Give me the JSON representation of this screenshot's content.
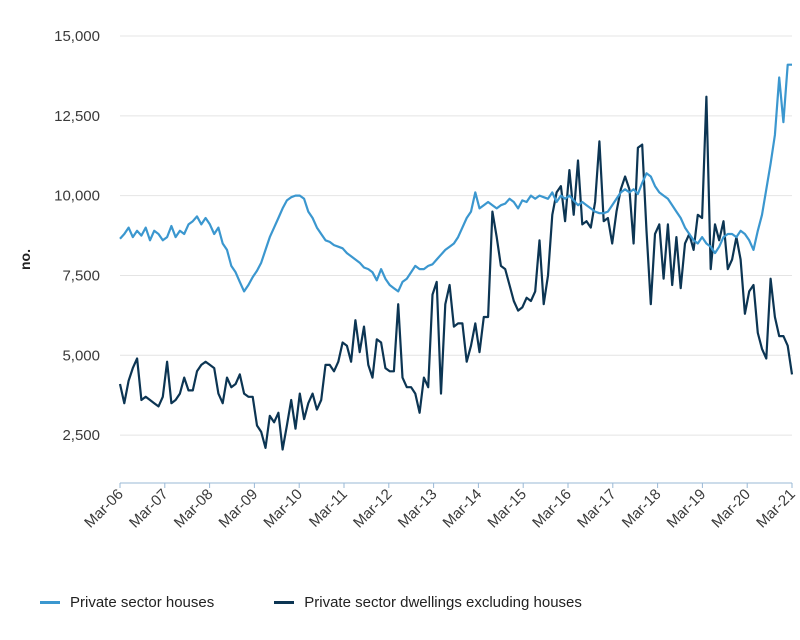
{
  "chart_data": {
    "type": "line",
    "ylabel": "no.",
    "xlabel": "",
    "ylim": [
      1000,
      15000
    ],
    "yticks": [
      2500,
      5000,
      7500,
      10000,
      12500,
      15000
    ],
    "ytick_labels": [
      "2,500",
      "5,000",
      "7,500",
      "10,000",
      "12,500",
      "15,000"
    ],
    "xticks": [
      "Mar-06",
      "Mar-07",
      "Mar-08",
      "Mar-09",
      "Mar-10",
      "Mar-11",
      "Mar-12",
      "Mar-13",
      "Mar-14",
      "Mar-15",
      "Mar-16",
      "Mar-17",
      "Mar-18",
      "Mar-19",
      "Mar-20",
      "Mar-21"
    ],
    "grid": true,
    "legend_position": "bottom",
    "series": [
      {
        "name": "Private sector houses",
        "color": "#3b97cf",
        "points": [
          [
            0,
            8650
          ],
          [
            1,
            8800
          ],
          [
            2,
            9000
          ],
          [
            3,
            8700
          ],
          [
            4,
            8900
          ],
          [
            5,
            8750
          ],
          [
            6,
            9000
          ],
          [
            7,
            8600
          ],
          [
            8,
            8900
          ],
          [
            9,
            8800
          ],
          [
            10,
            8600
          ],
          [
            11,
            8700
          ],
          [
            12,
            9050
          ],
          [
            13,
            8700
          ],
          [
            14,
            8900
          ],
          [
            15,
            8800
          ],
          [
            16,
            9100
          ],
          [
            17,
            9200
          ],
          [
            18,
            9350
          ],
          [
            19,
            9100
          ],
          [
            20,
            9300
          ],
          [
            21,
            9100
          ],
          [
            22,
            8800
          ],
          [
            23,
            9000
          ],
          [
            24,
            8500
          ],
          [
            25,
            8300
          ],
          [
            26,
            7800
          ],
          [
            27,
            7600
          ],
          [
            28,
            7300
          ],
          [
            29,
            7000
          ],
          [
            30,
            7200
          ],
          [
            31,
            7450
          ],
          [
            32,
            7650
          ],
          [
            33,
            7900
          ],
          [
            34,
            8300
          ],
          [
            35,
            8700
          ],
          [
            36,
            9000
          ],
          [
            37,
            9300
          ],
          [
            38,
            9600
          ],
          [
            39,
            9850
          ],
          [
            40,
            9950
          ],
          [
            41,
            10000
          ],
          [
            42,
            10000
          ],
          [
            43,
            9900
          ],
          [
            44,
            9500
          ],
          [
            45,
            9300
          ],
          [
            46,
            9000
          ],
          [
            47,
            8800
          ],
          [
            48,
            8600
          ],
          [
            49,
            8550
          ],
          [
            50,
            8450
          ],
          [
            51,
            8400
          ],
          [
            52,
            8350
          ],
          [
            53,
            8200
          ],
          [
            54,
            8100
          ],
          [
            55,
            8000
          ],
          [
            56,
            7900
          ],
          [
            57,
            7750
          ],
          [
            58,
            7700
          ],
          [
            59,
            7600
          ],
          [
            60,
            7350
          ],
          [
            61,
            7700
          ],
          [
            62,
            7400
          ],
          [
            63,
            7200
          ],
          [
            64,
            7100
          ],
          [
            65,
            7000
          ],
          [
            66,
            7300
          ],
          [
            67,
            7400
          ],
          [
            68,
            7600
          ],
          [
            69,
            7800
          ],
          [
            70,
            7700
          ],
          [
            71,
            7700
          ],
          [
            72,
            7800
          ],
          [
            73,
            7850
          ],
          [
            74,
            8000
          ],
          [
            75,
            8150
          ],
          [
            76,
            8300
          ],
          [
            77,
            8400
          ],
          [
            78,
            8500
          ],
          [
            79,
            8700
          ],
          [
            80,
            9000
          ],
          [
            81,
            9300
          ],
          [
            82,
            9500
          ],
          [
            83,
            10100
          ],
          [
            84,
            9600
          ],
          [
            85,
            9700
          ],
          [
            86,
            9800
          ],
          [
            87,
            9700
          ],
          [
            88,
            9600
          ],
          [
            89,
            9700
          ],
          [
            90,
            9750
          ],
          [
            91,
            9900
          ],
          [
            92,
            9800
          ],
          [
            93,
            9600
          ],
          [
            94,
            9850
          ],
          [
            95,
            9800
          ],
          [
            96,
            10000
          ],
          [
            97,
            9900
          ],
          [
            98,
            10000
          ],
          [
            99,
            9950
          ],
          [
            100,
            9900
          ],
          [
            101,
            10100
          ],
          [
            102,
            9800
          ],
          [
            103,
            10000
          ],
          [
            104,
            9900
          ],
          [
            105,
            10000
          ],
          [
            106,
            9850
          ],
          [
            107,
            9700
          ],
          [
            108,
            9800
          ],
          [
            109,
            9700
          ],
          [
            110,
            9600
          ],
          [
            111,
            9500
          ],
          [
            112,
            9450
          ],
          [
            113,
            9450
          ],
          [
            114,
            9500
          ],
          [
            115,
            9700
          ],
          [
            116,
            9900
          ],
          [
            117,
            10100
          ],
          [
            118,
            10200
          ],
          [
            119,
            10100
          ],
          [
            120,
            10200
          ],
          [
            121,
            10050
          ],
          [
            122,
            10400
          ],
          [
            123,
            10700
          ],
          [
            124,
            10600
          ],
          [
            125,
            10300
          ],
          [
            126,
            10100
          ],
          [
            127,
            10000
          ],
          [
            128,
            9900
          ],
          [
            129,
            9700
          ],
          [
            130,
            9500
          ],
          [
            131,
            9300
          ],
          [
            132,
            9000
          ],
          [
            133,
            8800
          ],
          [
            134,
            8600
          ],
          [
            135,
            8500
          ],
          [
            136,
            8700
          ],
          [
            137,
            8500
          ],
          [
            138,
            8400
          ],
          [
            139,
            8200
          ],
          [
            140,
            8400
          ],
          [
            141,
            8700
          ],
          [
            142,
            8800
          ],
          [
            143,
            8800
          ],
          [
            144,
            8700
          ],
          [
            145,
            8900
          ],
          [
            146,
            8800
          ],
          [
            147,
            8600
          ],
          [
            148,
            8300
          ],
          [
            149,
            8900
          ],
          [
            150,
            9400
          ],
          [
            151,
            10200
          ],
          [
            152,
            11000
          ],
          [
            153,
            11900
          ],
          [
            154,
            13700
          ],
          [
            155,
            12300
          ],
          [
            156,
            14100
          ],
          [
            157,
            14100
          ]
        ]
      },
      {
        "name": "Private sector dwellings excluding houses",
        "color": "#0c3553",
        "points": [
          [
            0,
            4100
          ],
          [
            1,
            3500
          ],
          [
            2,
            4200
          ],
          [
            3,
            4600
          ],
          [
            4,
            4900
          ],
          [
            5,
            3600
          ],
          [
            6,
            3700
          ],
          [
            7,
            3600
          ],
          [
            8,
            3500
          ],
          [
            9,
            3400
          ],
          [
            10,
            3700
          ],
          [
            11,
            4800
          ],
          [
            12,
            3500
          ],
          [
            13,
            3600
          ],
          [
            14,
            3800
          ],
          [
            15,
            4300
          ],
          [
            16,
            3900
          ],
          [
            17,
            3900
          ],
          [
            18,
            4500
          ],
          [
            19,
            4700
          ],
          [
            20,
            4800
          ],
          [
            21,
            4700
          ],
          [
            22,
            4600
          ],
          [
            23,
            3800
          ],
          [
            24,
            3500
          ],
          [
            25,
            4300
          ],
          [
            26,
            4000
          ],
          [
            27,
            4100
          ],
          [
            28,
            4400
          ],
          [
            29,
            3800
          ],
          [
            30,
            3700
          ],
          [
            31,
            3700
          ],
          [
            32,
            2800
          ],
          [
            33,
            2600
          ],
          [
            34,
            2100
          ],
          [
            35,
            3100
          ],
          [
            36,
            2900
          ],
          [
            37,
            3200
          ],
          [
            38,
            2050
          ],
          [
            39,
            2800
          ],
          [
            40,
            3600
          ],
          [
            41,
            2700
          ],
          [
            42,
            3800
          ],
          [
            43,
            3000
          ],
          [
            44,
            3500
          ],
          [
            45,
            3800
          ],
          [
            46,
            3300
          ],
          [
            47,
            3600
          ],
          [
            48,
            4700
          ],
          [
            49,
            4700
          ],
          [
            50,
            4500
          ],
          [
            51,
            4800
          ],
          [
            52,
            5400
          ],
          [
            53,
            5300
          ],
          [
            54,
            4800
          ],
          [
            55,
            6100
          ],
          [
            56,
            5100
          ],
          [
            57,
            5900
          ],
          [
            58,
            4700
          ],
          [
            59,
            4300
          ],
          [
            60,
            5500
          ],
          [
            61,
            5400
          ],
          [
            62,
            4600
          ],
          [
            63,
            4500
          ],
          [
            64,
            4500
          ],
          [
            65,
            6600
          ],
          [
            66,
            4300
          ],
          [
            67,
            4000
          ],
          [
            68,
            4000
          ],
          [
            69,
            3800
          ],
          [
            70,
            3200
          ],
          [
            71,
            4300
          ],
          [
            72,
            4000
          ],
          [
            73,
            6900
          ],
          [
            74,
            7300
          ],
          [
            75,
            3800
          ],
          [
            76,
            6600
          ],
          [
            77,
            7200
          ],
          [
            78,
            5900
          ],
          [
            79,
            6000
          ],
          [
            80,
            6000
          ],
          [
            81,
            4800
          ],
          [
            82,
            5300
          ],
          [
            83,
            6000
          ],
          [
            84,
            5100
          ],
          [
            85,
            6200
          ],
          [
            86,
            6200
          ],
          [
            87,
            9500
          ],
          [
            88,
            8700
          ],
          [
            89,
            7800
          ],
          [
            90,
            7700
          ],
          [
            91,
            7200
          ],
          [
            92,
            6700
          ],
          [
            93,
            6400
          ],
          [
            94,
            6500
          ],
          [
            95,
            6800
          ],
          [
            96,
            6700
          ],
          [
            97,
            7000
          ],
          [
            98,
            8600
          ],
          [
            99,
            6600
          ],
          [
            100,
            7500
          ],
          [
            101,
            9400
          ],
          [
            102,
            10100
          ],
          [
            103,
            10300
          ],
          [
            104,
            9200
          ],
          [
            105,
            10800
          ],
          [
            106,
            9400
          ],
          [
            107,
            11100
          ],
          [
            108,
            9100
          ],
          [
            109,
            9200
          ],
          [
            110,
            9000
          ],
          [
            111,
            9800
          ],
          [
            112,
            11700
          ],
          [
            113,
            9200
          ],
          [
            114,
            9300
          ],
          [
            115,
            8500
          ],
          [
            116,
            9500
          ],
          [
            117,
            10200
          ],
          [
            118,
            10600
          ],
          [
            119,
            10200
          ],
          [
            120,
            8500
          ],
          [
            121,
            11500
          ],
          [
            122,
            11600
          ],
          [
            123,
            8900
          ],
          [
            124,
            6600
          ],
          [
            125,
            8800
          ],
          [
            126,
            9100
          ],
          [
            127,
            7400
          ],
          [
            128,
            9100
          ],
          [
            129,
            7200
          ],
          [
            130,
            8700
          ],
          [
            131,
            7100
          ],
          [
            132,
            8500
          ],
          [
            133,
            8800
          ],
          [
            134,
            8300
          ],
          [
            135,
            9400
          ],
          [
            136,
            9300
          ],
          [
            137,
            13100
          ],
          [
            138,
            7700
          ],
          [
            139,
            9100
          ],
          [
            140,
            8600
          ],
          [
            141,
            9200
          ],
          [
            142,
            7700
          ],
          [
            143,
            8000
          ],
          [
            144,
            8700
          ],
          [
            145,
            8000
          ],
          [
            146,
            6300
          ],
          [
            147,
            7000
          ],
          [
            148,
            7200
          ],
          [
            149,
            5700
          ],
          [
            150,
            5200
          ],
          [
            151,
            4900
          ],
          [
            152,
            7400
          ],
          [
            153,
            6200
          ],
          [
            154,
            5600
          ],
          [
            155,
            5600
          ],
          [
            156,
            5300
          ],
          [
            157,
            4400
          ]
        ]
      }
    ]
  }
}
